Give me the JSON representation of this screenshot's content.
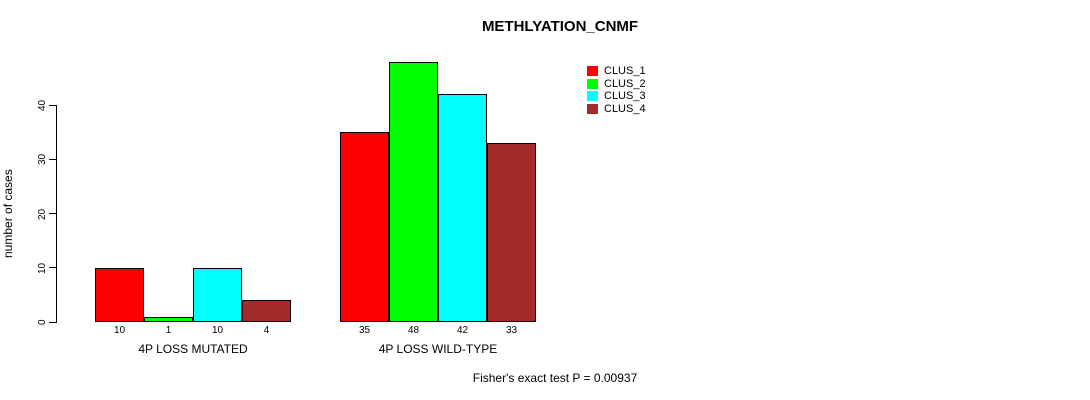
{
  "title": "METHLYATION_CNMF",
  "ylabel": "number of cases",
  "caption": "Fisher's exact test P = 0.00937",
  "legend": [
    {
      "label": "CLUS_1",
      "color": "#FF0000"
    },
    {
      "label": "CLUS_2",
      "color": "#00FF00"
    },
    {
      "label": "CLUS_3",
      "color": "#00FFFF"
    },
    {
      "label": "CLUS_4",
      "color": "#A52A2A"
    }
  ],
  "chart_data": {
    "type": "bar",
    "title": "METHLYATION_CNMF",
    "ylabel": "number of cases",
    "xlabel": "",
    "ylim": [
      0,
      40
    ],
    "yticks": [
      0,
      10,
      20,
      30,
      40
    ],
    "grid": false,
    "legend_position": "top-right",
    "categories": [
      "4P LOSS MUTATED",
      "4P LOSS WILD-TYPE"
    ],
    "series": [
      {
        "name": "CLUS_1",
        "color": "#FF0000",
        "values": [
          10,
          35
        ]
      },
      {
        "name": "CLUS_2",
        "color": "#00FF00",
        "values": [
          1,
          48
        ]
      },
      {
        "name": "CLUS_3",
        "color": "#00FFFF",
        "values": [
          10,
          42
        ]
      },
      {
        "name": "CLUS_4",
        "color": "#A52A2A",
        "values": [
          4,
          33
        ]
      }
    ],
    "bar_labels": [
      [
        10,
        1,
        10,
        4
      ],
      [
        35,
        48,
        42,
        33
      ]
    ],
    "annotation": "Fisher's exact test P = 0.00937"
  }
}
